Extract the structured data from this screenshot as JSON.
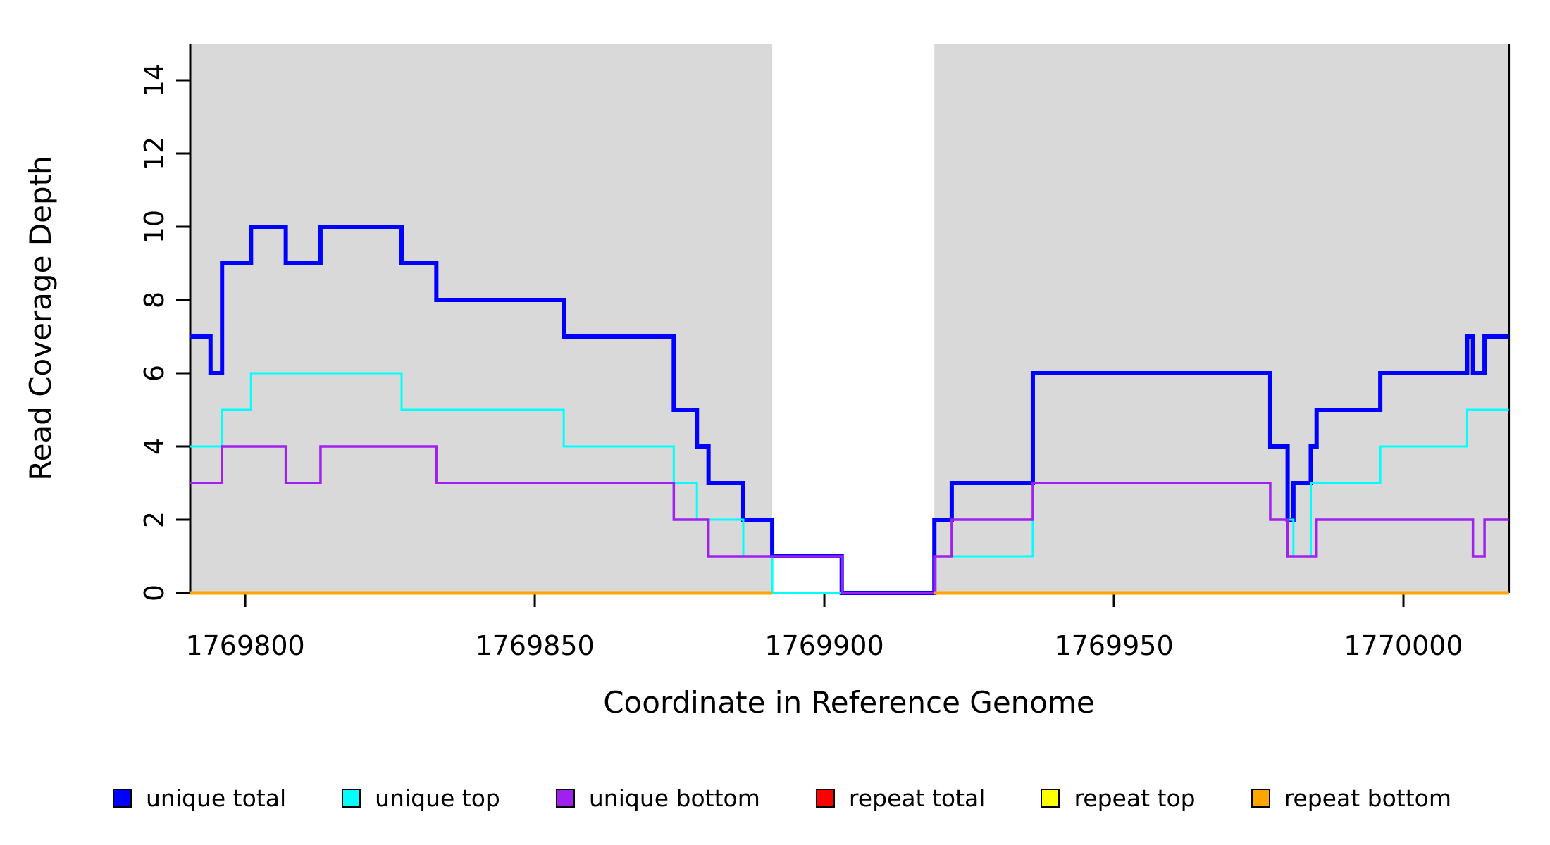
{
  "chart_data": {
    "type": "step-line",
    "title": "",
    "xlabel": "Coordinate in Reference Genome",
    "ylabel": "Read Coverage Depth",
    "x_ticks": [
      1769800,
      1769850,
      1769900,
      1769950,
      1770000
    ],
    "x_tick_labels": [
      "1769800",
      "1769850",
      "1769900",
      "1769950",
      "1770000"
    ],
    "y_ticks": [
      0,
      2,
      4,
      6,
      8,
      10,
      12,
      14
    ],
    "y_tick_labels": [
      "0",
      "2",
      "4",
      "6",
      "8",
      "10",
      "12",
      "14"
    ],
    "xlim": [
      1769790.5,
      1770018.2
    ],
    "ylim": [
      0,
      15
    ],
    "grid": false,
    "plot_background": "#ffffff",
    "shaded_regions": [
      {
        "name": "covered-region-left",
        "x0": 1769790.5,
        "x1": 1769891,
        "color": "#D9D9D9"
      },
      {
        "name": "covered-region-right",
        "x0": 1769919,
        "x1": 1770018.2,
        "color": "#D9D9D9"
      }
    ],
    "gap_region": {
      "x0": 1769891,
      "x1": 1769919,
      "color": "#ffffff"
    },
    "series": [
      {
        "name": "unique total",
        "id": "unique-total",
        "color": "#0000FF",
        "width": 6,
        "segments": [
          {
            "end": 1770018.2,
            "steps": [
              [
                1769790.5,
                7
              ],
              [
                1769794,
                6
              ],
              [
                1769796,
                9
              ],
              [
                1769801,
                10
              ],
              [
                1769807,
                9
              ],
              [
                1769813,
                10
              ],
              [
                1769827,
                9
              ],
              [
                1769833,
                8
              ],
              [
                1769855,
                7
              ],
              [
                1769874,
                5
              ],
              [
                1769878,
                4
              ],
              [
                1769880,
                3
              ],
              [
                1769886,
                2
              ],
              [
                1769891,
                1
              ],
              [
                1769903,
                0
              ],
              [
                1769919,
                2
              ],
              [
                1769922,
                3
              ],
              [
                1769936,
                6
              ],
              [
                1769977,
                4
              ],
              [
                1769980,
                2
              ],
              [
                1769981,
                3
              ],
              [
                1769984,
                4
              ],
              [
                1769985,
                5
              ],
              [
                1769996,
                6
              ],
              [
                1770011,
                7
              ],
              [
                1770012,
                6
              ],
              [
                1770014,
                7
              ]
            ]
          }
        ]
      },
      {
        "name": "unique top",
        "id": "unique-top",
        "color": "#00FFFF",
        "width": 3,
        "segments": [
          {
            "end": 1770018.2,
            "steps": [
              [
                1769790.5,
                4
              ],
              [
                1769796,
                5
              ],
              [
                1769801,
                6
              ],
              [
                1769827,
                5
              ],
              [
                1769855,
                4
              ],
              [
                1769874,
                3
              ],
              [
                1769878,
                2
              ],
              [
                1769886,
                1
              ],
              [
                1769891,
                0
              ],
              [
                1769919,
                1
              ],
              [
                1769936,
                3
              ],
              [
                1769977,
                2
              ],
              [
                1769981,
                1
              ],
              [
                1769984,
                3
              ],
              [
                1769996,
                4
              ],
              [
                1770011,
                5
              ]
            ]
          }
        ]
      },
      {
        "name": "unique bottom",
        "id": "unique-bottom",
        "color": "#A020F0",
        "width": 3.5,
        "segments": [
          {
            "end": 1770018.2,
            "steps": [
              [
                1769790.5,
                3
              ],
              [
                1769796,
                4
              ],
              [
                1769807,
                3
              ],
              [
                1769813,
                4
              ],
              [
                1769833,
                3
              ],
              [
                1769874,
                2
              ],
              [
                1769880,
                1
              ],
              [
                1769903,
                0
              ],
              [
                1769919,
                1
              ],
              [
                1769922,
                2
              ],
              [
                1769936,
                3
              ],
              [
                1769977,
                2
              ],
              [
                1769980,
                1
              ],
              [
                1769985,
                2
              ],
              [
                1770012,
                1
              ],
              [
                1770014,
                2
              ]
            ]
          }
        ]
      },
      {
        "name": "repeat total",
        "id": "repeat-total",
        "color": "#FF0000",
        "width": 3,
        "segments": [
          {
            "end": 1769891,
            "steps": [
              [
                1769790.5,
                0
              ]
            ]
          },
          {
            "end": 1770018.2,
            "steps": [
              [
                1769919,
                0
              ]
            ]
          }
        ]
      },
      {
        "name": "repeat top",
        "id": "repeat-top",
        "color": "#FFFF00",
        "width": 3,
        "segments": [
          {
            "end": 1769891,
            "steps": [
              [
                1769790.5,
                0
              ]
            ]
          },
          {
            "end": 1770018.2,
            "steps": [
              [
                1769919,
                0
              ]
            ]
          }
        ]
      },
      {
        "name": "repeat bottom",
        "id": "repeat-bottom",
        "color": "#FFA500",
        "width": 5,
        "segments": [
          {
            "end": 1769891,
            "steps": [
              [
                1769790.5,
                0
              ]
            ]
          },
          {
            "end": 1770018.2,
            "steps": [
              [
                1769919,
                0
              ]
            ]
          }
        ]
      }
    ],
    "legend_position": "bottom"
  },
  "legend": {
    "items": [
      {
        "label": "unique total",
        "color": "#0000FF"
      },
      {
        "label": "unique top",
        "color": "#00FFFF"
      },
      {
        "label": "unique bottom",
        "color": "#A020F0"
      },
      {
        "label": "repeat total",
        "color": "#FF0000"
      },
      {
        "label": "repeat top",
        "color": "#FFFF00"
      },
      {
        "label": "repeat bottom",
        "color": "#FFA500"
      }
    ]
  },
  "colors": {
    "axis": "#000000",
    "shaded_region": "#D9D9D9",
    "background": "#ffffff"
  }
}
